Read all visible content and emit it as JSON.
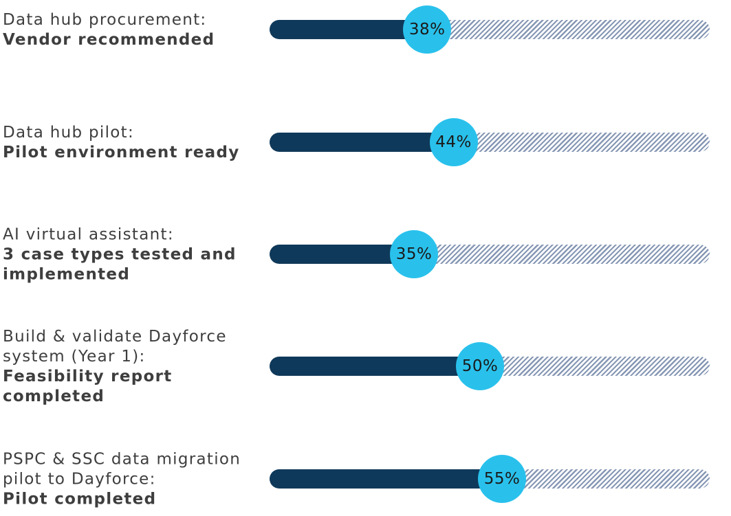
{
  "page": {
    "background": "#ffffff",
    "description": "Milestone progress infographic with five hatched progress tracks, navy fills and cyan percent bubbles"
  },
  "colors": {
    "bar_fill": "#0F395A",
    "bubble": "#29C1EC",
    "hatch_stripe": "#8697B4",
    "label_text": "#3E3E3E",
    "percent_text": "#1A1A1A"
  },
  "rows": [
    {
      "task": "Data hub procurement:",
      "status": "Vendor recommended",
      "percent": 38,
      "percent_label": "38%"
    },
    {
      "task": "Data hub pilot:",
      "status": "Pilot environment ready",
      "percent": 44,
      "percent_label": "44%"
    },
    {
      "task": "AI virtual assistant:",
      "status": "3 case types tested and\nimplemented",
      "percent": 35,
      "percent_label": "35%"
    },
    {
      "task": "Build & validate Dayforce\nsystem (Year 1):",
      "status": "Feasibility report completed",
      "percent": 50,
      "percent_label": "50%"
    },
    {
      "task": "PSPC & SSC data migration\npilot to Dayforce:",
      "status": "Pilot completed",
      "percent": 55,
      "percent_label": "55%"
    }
  ],
  "chart_data": {
    "type": "bar",
    "orientation": "horizontal",
    "title": "",
    "categories": [
      "Data hub procurement: Vendor recommended",
      "Data hub pilot: Pilot environment ready",
      "AI virtual assistant: 3 case types tested and implemented",
      "Build & validate Dayforce system (Year 1): Feasibility report completed",
      "PSPC & SSC data migration pilot to Dayforce: Pilot completed"
    ],
    "values": [
      38,
      44,
      35,
      50,
      55
    ],
    "value_labels": [
      "38%",
      "44%",
      "35%",
      "50%",
      "55%"
    ],
    "xlabel": "",
    "ylabel": "",
    "xlim": [
      0,
      100
    ],
    "unit": "percent",
    "grid": false,
    "legend": false,
    "style_notes": "remaining portion of each track rendered as diagonal grey-blue hatching; value shown in cyan circle at end of navy fill"
  }
}
